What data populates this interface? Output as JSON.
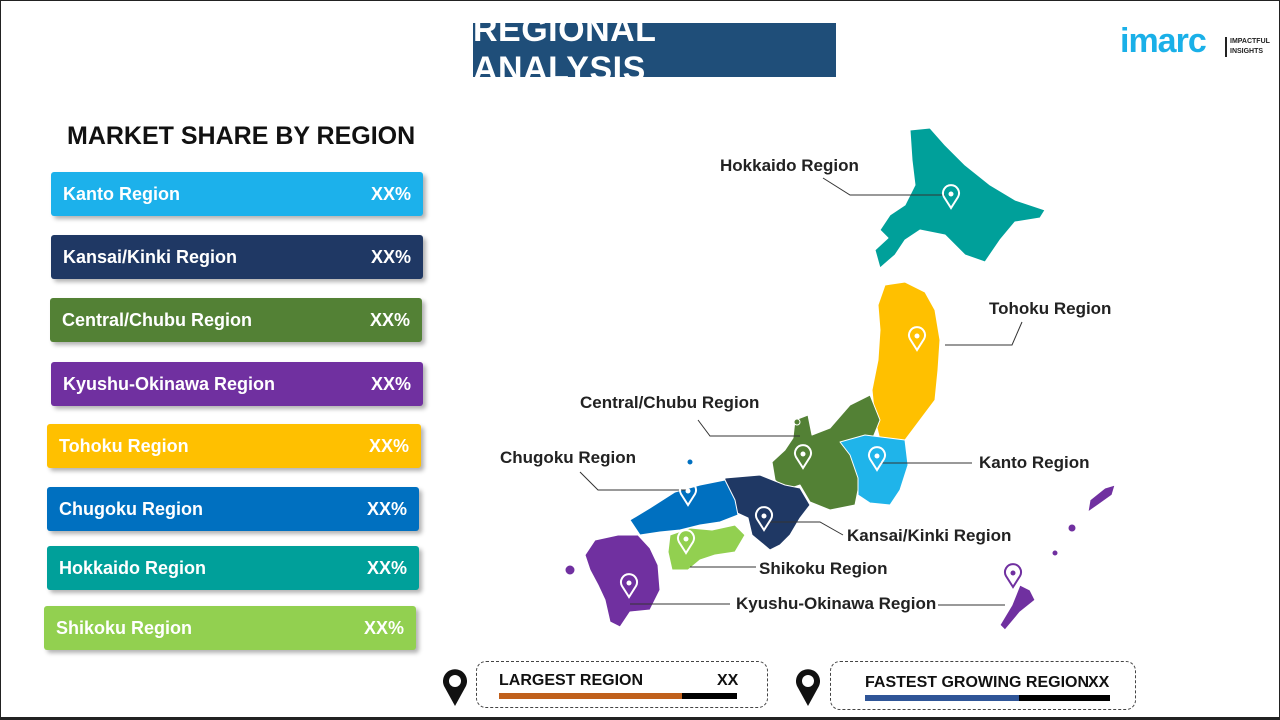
{
  "title": "REGIONAL ANALYSIS",
  "logo": {
    "text": "imarc",
    "tagline_1": "IMPACTFUL",
    "tagline_2": "INSIGHTS"
  },
  "market_share": {
    "heading": "MARKET SHARE BY REGION",
    "items": [
      {
        "label": "Kanto  Region",
        "value": "XX%",
        "color": "#1cb1eb"
      },
      {
        "label": "Kansai/Kinki  Region",
        "value": "XX%",
        "color": "#1f3864"
      },
      {
        "label": "Central/Chubu  Region",
        "value": "XX%",
        "color": "#538135"
      },
      {
        "label": "Kyushu-Okinawa  Region",
        "value": "XX%",
        "color": "#7030a0"
      },
      {
        "label": "Tohoku  Region",
        "value": "XX%",
        "color": "#ffc000"
      },
      {
        "label": "Chugoku  Region",
        "value": "XX%",
        "color": "#0070c0"
      },
      {
        "label": "Hokkaido  Region",
        "value": "XX%",
        "color": "#00a09a"
      },
      {
        "label": "Shikoku  Region",
        "value": "XX%",
        "color": "#92d050"
      }
    ]
  },
  "map_labels": {
    "hokkaido": "Hokkaido Region",
    "tohoku": "Tohoku Region",
    "central": "Central/Chubu Region",
    "kanto": "Kanto Region",
    "chugoku": "Chugoku Region",
    "kansai": "Kansai/Kinki Region",
    "shikoku": "Shikoku Region",
    "kyushu": "Kyushu-Okinawa Region"
  },
  "largest": {
    "label": "LARGEST REGION",
    "value": "XX",
    "progress": 0.77,
    "color": "#c0601c"
  },
  "fastest": {
    "label": "FASTEST GROWING REGION",
    "value": "XX",
    "progress": 0.63,
    "color": "#2f5597"
  }
}
